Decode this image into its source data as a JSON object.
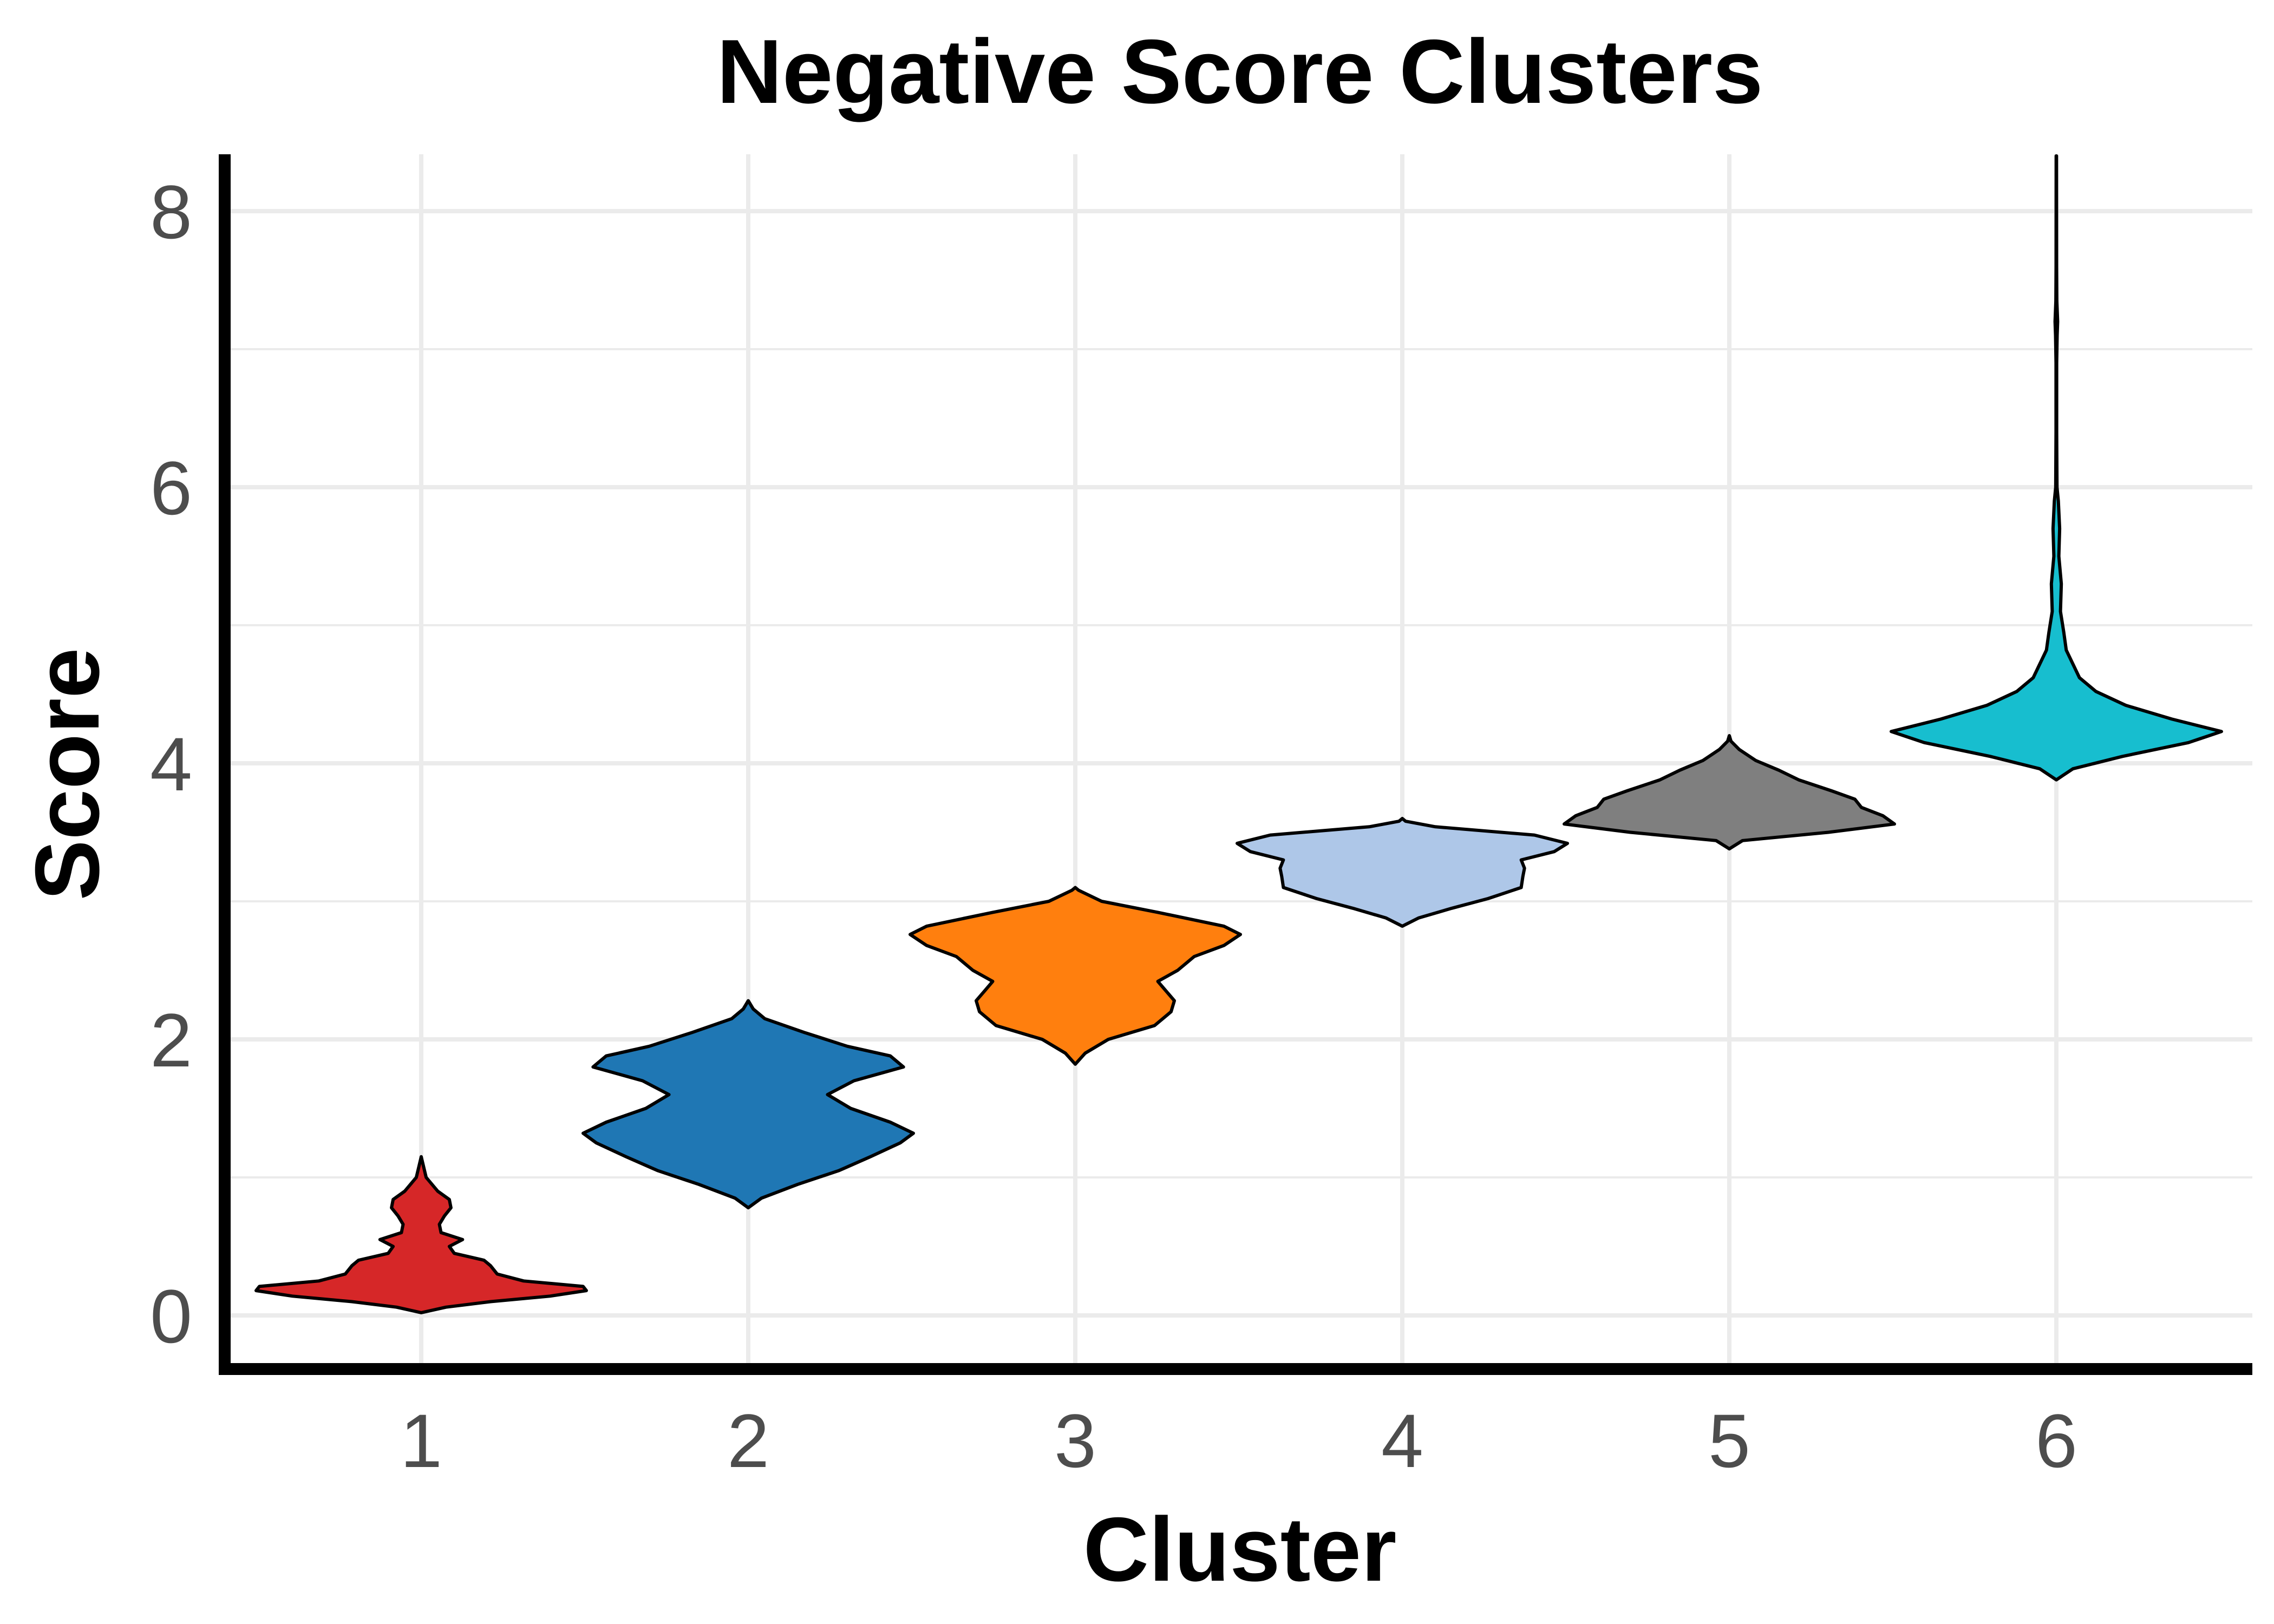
{
  "chart_data": {
    "type": "violin",
    "title": "Negative Score Clusters",
    "xlabel": "Cluster",
    "ylabel": "Score",
    "categories": [
      "1",
      "2",
      "3",
      "4",
      "5",
      "6"
    ],
    "ylim": [
      -0.35,
      8.4
    ],
    "yticks": [
      0,
      2,
      4,
      6,
      8
    ],
    "grid": true,
    "legend": "none",
    "colors": [
      "#d62728",
      "#1f77b4",
      "#ff7f0e",
      "#aec7e8",
      "#7f7f7f",
      "#17becf"
    ],
    "violins": [
      {
        "category": "1",
        "min": 0.02,
        "max": 1.15,
        "density": [
          [
            0.02,
            0.0
          ],
          [
            0.06,
            0.15
          ],
          [
            0.1,
            0.42
          ],
          [
            0.14,
            0.78
          ],
          [
            0.18,
            1.0
          ],
          [
            0.21,
            0.98
          ],
          [
            0.25,
            0.62
          ],
          [
            0.3,
            0.46
          ],
          [
            0.36,
            0.42
          ],
          [
            0.4,
            0.38
          ],
          [
            0.45,
            0.2
          ],
          [
            0.5,
            0.17
          ],
          [
            0.55,
            0.25
          ],
          [
            0.6,
            0.12
          ],
          [
            0.66,
            0.11
          ],
          [
            0.72,
            0.14
          ],
          [
            0.78,
            0.18
          ],
          [
            0.84,
            0.17
          ],
          [
            0.9,
            0.1
          ],
          [
            1.0,
            0.03
          ],
          [
            1.1,
            0.01
          ],
          [
            1.15,
            0.0
          ]
        ]
      },
      {
        "category": "2",
        "min": 0.78,
        "max": 2.28,
        "density": [
          [
            0.78,
            0.0
          ],
          [
            0.85,
            0.08
          ],
          [
            0.95,
            0.3
          ],
          [
            1.05,
            0.55
          ],
          [
            1.15,
            0.74
          ],
          [
            1.25,
            0.92
          ],
          [
            1.32,
            1.0
          ],
          [
            1.4,
            0.86
          ],
          [
            1.5,
            0.62
          ],
          [
            1.6,
            0.48
          ],
          [
            1.7,
            0.64
          ],
          [
            1.8,
            0.94
          ],
          [
            1.88,
            0.86
          ],
          [
            1.95,
            0.6
          ],
          [
            2.05,
            0.34
          ],
          [
            2.15,
            0.1
          ],
          [
            2.22,
            0.03
          ],
          [
            2.28,
            0.0
          ]
        ]
      },
      {
        "category": "3",
        "min": 1.82,
        "max": 3.1,
        "density": [
          [
            1.82,
            0.0
          ],
          [
            1.9,
            0.06
          ],
          [
            2.0,
            0.2
          ],
          [
            2.1,
            0.48
          ],
          [
            2.2,
            0.58
          ],
          [
            2.28,
            0.6
          ],
          [
            2.35,
            0.55
          ],
          [
            2.42,
            0.5
          ],
          [
            2.5,
            0.62
          ],
          [
            2.6,
            0.72
          ],
          [
            2.68,
            0.9
          ],
          [
            2.76,
            1.0
          ],
          [
            2.82,
            0.9
          ],
          [
            2.92,
            0.5
          ],
          [
            3.0,
            0.16
          ],
          [
            3.08,
            0.02
          ],
          [
            3.1,
            0.0
          ]
        ]
      },
      {
        "category": "4",
        "min": 2.82,
        "max": 3.6,
        "density": [
          [
            2.82,
            0.0
          ],
          [
            2.88,
            0.1
          ],
          [
            2.95,
            0.3
          ],
          [
            3.02,
            0.52
          ],
          [
            3.1,
            0.72
          ],
          [
            3.18,
            0.73
          ],
          [
            3.24,
            0.74
          ],
          [
            3.3,
            0.72
          ],
          [
            3.36,
            0.92
          ],
          [
            3.42,
            1.0
          ],
          [
            3.48,
            0.8
          ],
          [
            3.54,
            0.2
          ],
          [
            3.58,
            0.02
          ],
          [
            3.6,
            0.0
          ]
        ]
      },
      {
        "category": "5",
        "min": 3.38,
        "max": 4.2,
        "density": [
          [
            3.38,
            0.0
          ],
          [
            3.44,
            0.08
          ],
          [
            3.5,
            0.6
          ],
          [
            3.56,
            1.0
          ],
          [
            3.62,
            0.93
          ],
          [
            3.68,
            0.8
          ],
          [
            3.74,
            0.76
          ],
          [
            3.8,
            0.62
          ],
          [
            3.88,
            0.42
          ],
          [
            3.95,
            0.3
          ],
          [
            4.02,
            0.16
          ],
          [
            4.1,
            0.06
          ],
          [
            4.16,
            0.01
          ],
          [
            4.2,
            0.0
          ]
        ]
      },
      {
        "category": "6",
        "min": 3.88,
        "max": 8.4,
        "density": [
          [
            3.88,
            0.0
          ],
          [
            3.96,
            0.1
          ],
          [
            4.05,
            0.4
          ],
          [
            4.15,
            0.8
          ],
          [
            4.23,
            1.0
          ],
          [
            4.32,
            0.7
          ],
          [
            4.42,
            0.42
          ],
          [
            4.52,
            0.24
          ],
          [
            4.62,
            0.14
          ],
          [
            4.72,
            0.1
          ],
          [
            4.82,
            0.06
          ],
          [
            4.95,
            0.045
          ],
          [
            5.1,
            0.025
          ],
          [
            5.3,
            0.03
          ],
          [
            5.5,
            0.015
          ],
          [
            5.7,
            0.02
          ],
          [
            5.9,
            0.012
          ],
          [
            6.0,
            0.004
          ],
          [
            6.4,
            0.002
          ],
          [
            6.9,
            0.002
          ],
          [
            7.1,
            0.005
          ],
          [
            7.2,
            0.008
          ],
          [
            7.35,
            0.003
          ],
          [
            7.6,
            0.0015
          ],
          [
            8.4,
            0.001
          ]
        ]
      }
    ]
  }
}
